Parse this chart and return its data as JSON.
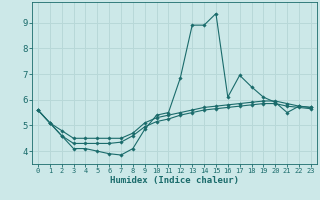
{
  "xlabel": "Humidex (Indice chaleur)",
  "xlim": [
    -0.5,
    23.5
  ],
  "ylim": [
    3.5,
    9.8
  ],
  "xticks": [
    0,
    1,
    2,
    3,
    4,
    5,
    6,
    7,
    8,
    9,
    10,
    11,
    12,
    13,
    14,
    15,
    16,
    17,
    18,
    19,
    20,
    21,
    22,
    23
  ],
  "yticks": [
    4,
    5,
    6,
    7,
    8,
    9
  ],
  "bg_color": "#cce8e8",
  "line_color": "#1a6b6b",
  "grid_color": "#b8d8d8",
  "lines": [
    {
      "x": [
        0,
        1,
        2,
        3,
        4,
        5,
        6,
        7,
        8,
        9,
        10,
        11,
        12,
        13,
        14,
        15,
        16,
        17,
        18,
        19,
        20,
        21,
        22,
        23
      ],
      "y": [
        5.6,
        5.1,
        4.6,
        4.1,
        4.1,
        4.0,
        3.9,
        3.85,
        4.1,
        4.85,
        5.4,
        5.5,
        6.85,
        8.9,
        8.9,
        9.35,
        6.1,
        6.95,
        6.5,
        6.1,
        5.9,
        5.5,
        5.75,
        5.7
      ]
    },
    {
      "x": [
        0,
        1,
        2,
        3,
        4,
        5,
        6,
        7,
        8,
        9,
        10,
        11,
        12,
        13,
        14,
        15,
        16,
        17,
        18,
        19,
        20,
        21,
        22,
        23
      ],
      "y": [
        5.6,
        5.1,
        4.8,
        4.5,
        4.5,
        4.5,
        4.5,
        4.5,
        4.7,
        5.1,
        5.3,
        5.4,
        5.5,
        5.6,
        5.7,
        5.75,
        5.8,
        5.85,
        5.9,
        5.95,
        5.95,
        5.85,
        5.75,
        5.7
      ]
    },
    {
      "x": [
        0,
        1,
        2,
        3,
        4,
        5,
        6,
        7,
        8,
        9,
        10,
        11,
        12,
        13,
        14,
        15,
        16,
        17,
        18,
        19,
        20,
        21,
        22,
        23
      ],
      "y": [
        5.6,
        5.1,
        4.6,
        4.3,
        4.3,
        4.3,
        4.3,
        4.35,
        4.6,
        4.95,
        5.15,
        5.25,
        5.4,
        5.5,
        5.6,
        5.65,
        5.7,
        5.75,
        5.8,
        5.85,
        5.85,
        5.75,
        5.7,
        5.65
      ]
    }
  ]
}
